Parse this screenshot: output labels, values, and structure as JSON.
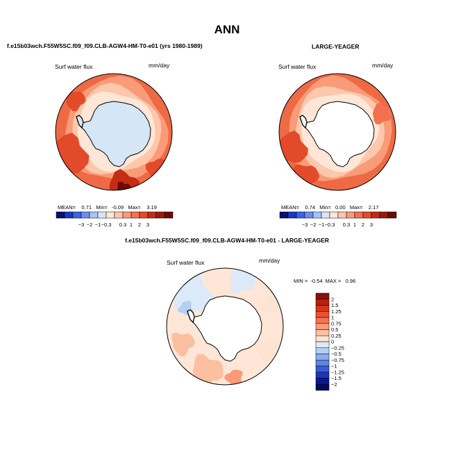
{
  "page": {
    "title": "ANN"
  },
  "chart_data": [
    {
      "type": "heatmap",
      "projection": "south-polar-stereographic",
      "title": "f.e15b03wch.F55W5SC.f09_f09.CLB-AGW4-HM-T0-e01 (yrs 1980-1989)",
      "variable": "Surf water flux",
      "units": "mm/day",
      "stats": {
        "mean_label": "MEAN=",
        "mean": "0.71",
        "min_label": "Min=",
        "min": "-0.09",
        "max_label": "Max=",
        "max": "3.19"
      },
      "colorbar_labels": [
        "-3",
        "-2",
        "-1",
        "-0.3",
        "0.3",
        "1",
        "2",
        "3"
      ],
      "colorbar_colors": [
        "#08106e",
        "#1a36c8",
        "#3a63e4",
        "#6b8eee",
        "#a6c3f5",
        "#d5e6f7",
        "#ffe6d6",
        "#fcc7ab",
        "#f99b78",
        "#f2714e",
        "#e34a2a",
        "#c52c14",
        "#9a1a0a",
        "#6e0a04"
      ]
    },
    {
      "type": "heatmap",
      "projection": "south-polar-stereographic",
      "title": "LARGE-YEAGER",
      "variable": "Surf water flux",
      "units": "mm/day",
      "stats": {
        "mean_label": "MEAN=",
        "mean": "0.74",
        "min_label": "Min=",
        "min": "0.00",
        "max_label": "Max=",
        "max": "2.17"
      },
      "colorbar_labels": [
        "-3",
        "-2",
        "-1",
        "-0.3",
        "0.3",
        "1",
        "2",
        "3"
      ],
      "colorbar_colors": [
        "#08106e",
        "#1a36c8",
        "#3a63e4",
        "#6b8eee",
        "#a6c3f5",
        "#d5e6f7",
        "#ffe6d6",
        "#fcc7ab",
        "#f99b78",
        "#f2714e",
        "#e34a2a",
        "#c52c14",
        "#9a1a0a",
        "#6e0a04"
      ]
    },
    {
      "type": "heatmap",
      "projection": "south-polar-stereographic",
      "title": "f.e15b03wch.F55W5SC.f09_f09.CLB-AGW4-HM-T0-e01 - LARGE-YEAGER",
      "variable": "Surf water flux",
      "units": "mm/day",
      "stats": {
        "min_label": "MIN =",
        "min": "-0.54",
        "max_label": "MAX =",
        "max": "0.96"
      },
      "colorbar_labels": [
        "2",
        "1.5",
        "1.25",
        "1",
        "0.75",
        "0.5",
        "0.25",
        "0",
        "-0.25",
        "-0.5",
        "-0.75",
        "-1",
        "-1.25",
        "-1.5",
        "-2"
      ],
      "colorbar_colors": [
        "#8c1208",
        "#b5200f",
        "#d2361b",
        "#ea5230",
        "#f57350",
        "#fa9a78",
        "#fcbf9f",
        "#fde3d1",
        "#dce9f8",
        "#b5cff2",
        "#88aeeb",
        "#5d86e0",
        "#3a5ed2",
        "#1b34b8",
        "#0a1890",
        "#050a62"
      ]
    }
  ]
}
